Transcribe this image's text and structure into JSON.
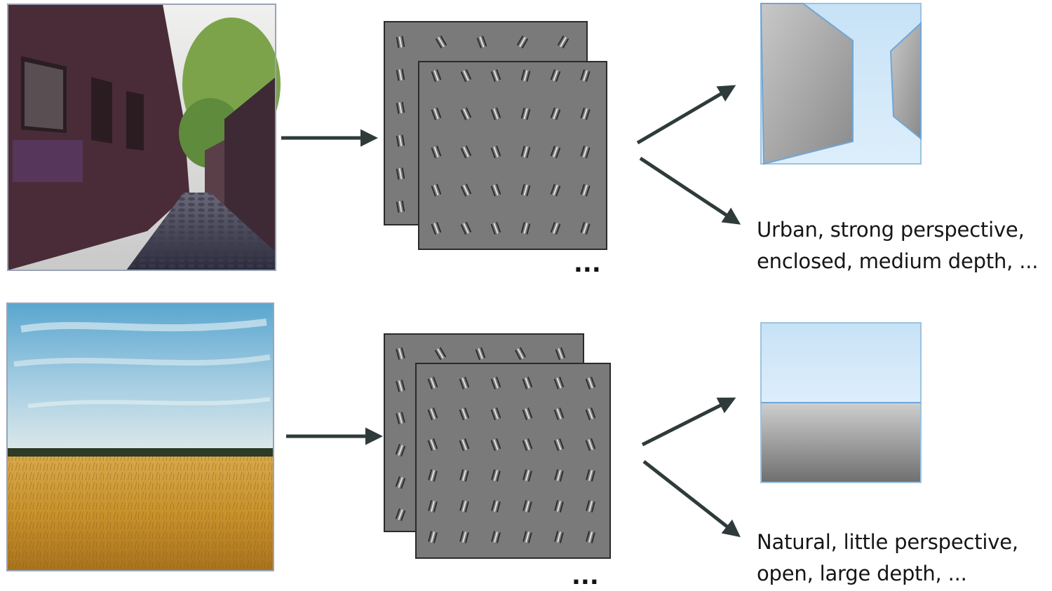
{
  "rows": [
    {
      "id": "urban",
      "scene": "urban-street-photo",
      "layout_schematic": "enclosed-perspective-walls",
      "description_lines": [
        "Urban, strong perspective,",
        "enclosed, medium depth, ..."
      ],
      "ellipsis": "..."
    },
    {
      "id": "natural",
      "scene": "wheat-field-photo",
      "layout_schematic": "open-horizon",
      "description_lines": [
        "Natural, little perspective,",
        "open, large depth, ..."
      ],
      "ellipsis": "..."
    }
  ],
  "colors": {
    "arrow": "#2f3b3b",
    "filter_panel": "#7a7a7a",
    "schematic_sky": "#cfe6f7",
    "schematic_wall": "#9a9a9a"
  },
  "icons": [
    "right-arrow-icon",
    "up-right-arrow-icon",
    "down-right-arrow-icon"
  ]
}
